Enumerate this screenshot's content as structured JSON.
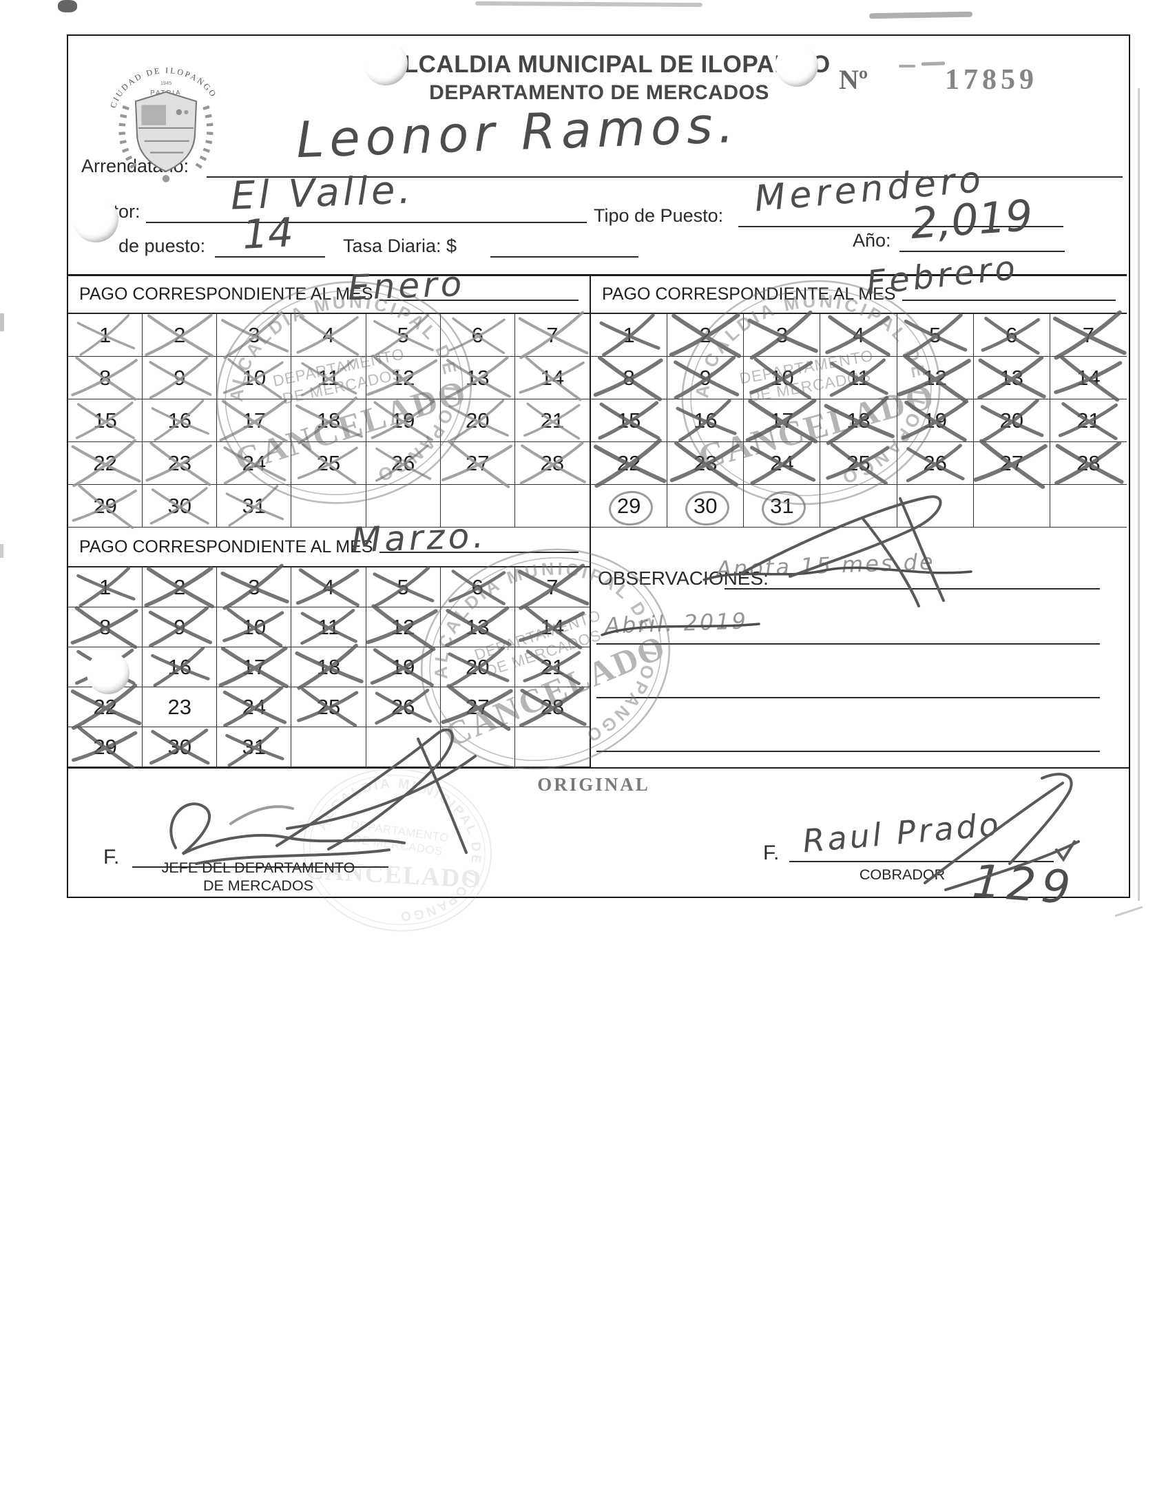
{
  "header": {
    "title_line1": "ALCALDIA MUNICIPAL DE ILOPANGO",
    "title_line2": "DEPARTAMENTO DE MERCADOS",
    "number_label": "Nº",
    "number_value": "17859"
  },
  "seal": {
    "arc_text": "CIUDAD DE ILOPANGO",
    "motto": "PATRIA"
  },
  "fields": {
    "arrendatario_label": "Arrendatario:",
    "arrendatario_value": "Leonor Ramos.",
    "sector_label": "Sector:",
    "sector_value": "El Valle.",
    "tipo_puesto_label": "Tipo de Puesto:",
    "tipo_puesto_value": "Merendero",
    "numero_puesto_label": "de puesto:",
    "numero_puesto_value": "14",
    "tasa_diaria_label": "Tasa Diaria: $",
    "anio_label": "Año:",
    "anio_value": "2,019"
  },
  "calendar": {
    "pago_header_label": "PAGO CORRESPONDIENTE AL MES",
    "day_numbers": [
      1,
      2,
      3,
      4,
      5,
      6,
      7,
      8,
      9,
      10,
      11,
      12,
      13,
      14,
      15,
      16,
      17,
      18,
      19,
      20,
      21,
      22,
      23,
      24,
      25,
      26,
      27,
      28,
      29,
      30,
      31
    ],
    "months": [
      {
        "name": "Enero",
        "x_style": "light",
        "crossed": [
          1,
          2,
          3,
          4,
          5,
          6,
          7,
          8,
          9,
          10,
          11,
          12,
          13,
          14,
          15,
          16,
          17,
          18,
          19,
          20,
          21,
          22,
          23,
          24,
          25,
          26,
          27,
          28,
          29,
          30,
          31
        ],
        "circled": []
      },
      {
        "name": "Febrero",
        "x_style": "bold",
        "crossed": [
          1,
          2,
          3,
          4,
          5,
          6,
          7,
          8,
          9,
          10,
          11,
          12,
          13,
          14,
          15,
          16,
          17,
          18,
          19,
          20,
          21,
          22,
          23,
          24,
          25,
          26,
          27,
          28
        ],
        "circled": [
          29,
          30,
          31
        ]
      },
      {
        "name": "Marzo.",
        "x_style": "bold",
        "crossed": [
          1,
          2,
          3,
          4,
          5,
          6,
          7,
          8,
          9,
          10,
          11,
          12,
          13,
          14,
          15,
          16,
          17,
          18,
          19,
          20,
          21,
          22,
          24,
          25,
          26,
          27,
          28,
          29,
          30,
          31
        ],
        "circled": []
      }
    ]
  },
  "stamp": {
    "ring_text": "ALCALDIA MUNICIPAL DE ILOPANGO",
    "dept_line1": "DEPARTAMENTO",
    "dept_line2": "DE MERCADOS",
    "status_text": "CANCELADO"
  },
  "observaciones": {
    "label": "OBSERVACIONES:",
    "note_line1": "Anota 15 mes de",
    "note_line2": "Abril. 2019"
  },
  "footer": {
    "original_label": "ORIGINAL",
    "firma_label_left": "F.",
    "firma_label_right": "F.",
    "left_caption_line1": "JEFE DEL DEPARTAMENTO",
    "left_caption_line2": "DE MERCADOS",
    "right_caption": "COBRADOR",
    "cobrador_name": "Raul Prado",
    "page_number": "129"
  }
}
